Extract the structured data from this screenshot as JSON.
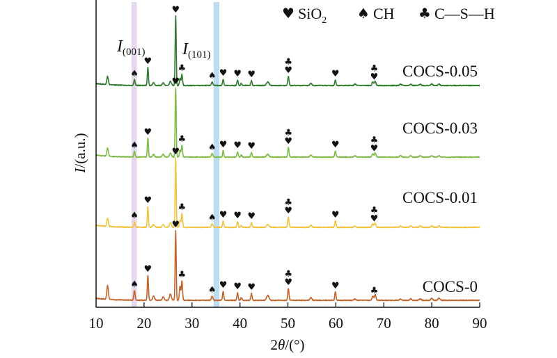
{
  "chart_data": {
    "type": "line",
    "title": "",
    "xlabel": "2θ/(°)",
    "xlabel_parts": {
      "pre": "2",
      "italic": "θ",
      "post": "/(°)"
    },
    "ylabel": "I/(a.u.)",
    "ylabel_parts": {
      "italic": "I",
      "post": "/(a.u.)"
    },
    "xlim": [
      10,
      90
    ],
    "xticks": [
      10,
      20,
      30,
      40,
      50,
      60,
      70,
      80,
      90
    ],
    "xtick_labels": [
      "10",
      "20",
      "30",
      "40",
      "50",
      "60",
      "70",
      "80",
      "90"
    ],
    "y_ticks_shown": false,
    "grid": false,
    "legend": {
      "placement": "top-right",
      "entries": [
        {
          "symbol": "♥",
          "label": "SiO",
          "sub": "2",
          "phase": "SiO2"
        },
        {
          "symbol": "♠",
          "label": "CH",
          "sub": "",
          "phase": "CH"
        },
        {
          "symbol": "♣",
          "label": "C—S—H",
          "sub": "",
          "phase": "C-S-H"
        }
      ]
    },
    "highlight_bands": [
      {
        "name": "I(001)",
        "label": "I",
        "sub": "(001)",
        "x_range": [
          17.4,
          18.5
        ],
        "color": "#e6d6ee"
      },
      {
        "name": "I(101)",
        "label": "I",
        "sub": "(101)",
        "x_range": [
          34.5,
          35.7
        ],
        "color": "#bcdcf2"
      }
    ],
    "peaks_2theta": [
      12.4,
      18.0,
      20.8,
      26.6,
      27.9,
      34.2,
      36.5,
      39.5,
      42.4,
      45.8,
      50.1,
      54.8,
      59.9,
      67.9,
      68.2
    ],
    "series": [
      {
        "name": "COCS-0.05",
        "color": "#2e7a2e",
        "offset_level": 3,
        "peaks": [
          {
            "x": 12.4,
            "h": 0.12,
            "w": 0.25
          },
          {
            "x": 18.0,
            "h": 0.08,
            "w": 0.2
          },
          {
            "x": 20.8,
            "h": 0.26,
            "w": 0.18
          },
          {
            "x": 22.0,
            "h": 0.04,
            "w": 0.3
          },
          {
            "x": 24.0,
            "h": 0.04,
            "w": 0.3
          },
          {
            "x": 25.5,
            "h": 0.06,
            "w": 0.3
          },
          {
            "x": 26.6,
            "h": 1.0,
            "w": 0.17
          },
          {
            "x": 27.5,
            "h": 0.1,
            "w": 0.2
          },
          {
            "x": 27.9,
            "h": 0.16,
            "w": 0.2
          },
          {
            "x": 34.2,
            "h": 0.05,
            "w": 0.25
          },
          {
            "x": 36.5,
            "h": 0.09,
            "w": 0.2
          },
          {
            "x": 39.5,
            "h": 0.08,
            "w": 0.2
          },
          {
            "x": 40.3,
            "h": 0.03,
            "w": 0.2
          },
          {
            "x": 42.4,
            "h": 0.07,
            "w": 0.2
          },
          {
            "x": 45.8,
            "h": 0.05,
            "w": 0.4
          },
          {
            "x": 50.1,
            "h": 0.13,
            "w": 0.2
          },
          {
            "x": 54.8,
            "h": 0.03,
            "w": 0.3
          },
          {
            "x": 59.9,
            "h": 0.08,
            "w": 0.2
          },
          {
            "x": 64.0,
            "h": 0.02,
            "w": 0.3
          },
          {
            "x": 67.7,
            "h": 0.05,
            "w": 0.25
          },
          {
            "x": 68.2,
            "h": 0.06,
            "w": 0.25
          },
          {
            "x": 73.5,
            "h": 0.02,
            "w": 0.3
          },
          {
            "x": 75.6,
            "h": 0.02,
            "w": 0.3
          },
          {
            "x": 77.6,
            "h": 0.02,
            "w": 0.3
          },
          {
            "x": 80.0,
            "h": 0.02,
            "w": 0.3
          },
          {
            "x": 81.5,
            "h": 0.02,
            "w": 0.3
          }
        ],
        "markers": [
          {
            "x": 18.0,
            "symbols": [
              "♠"
            ]
          },
          {
            "x": 20.8,
            "symbols": [
              "♥"
            ]
          },
          {
            "x": 26.6,
            "symbols": [
              "♥"
            ]
          },
          {
            "x": 27.9,
            "symbols": [
              "♣"
            ]
          },
          {
            "x": 34.2,
            "symbols": [
              "♠"
            ]
          },
          {
            "x": 36.5,
            "symbols": [
              "♥"
            ]
          },
          {
            "x": 39.5,
            "symbols": [
              "♥"
            ]
          },
          {
            "x": 42.4,
            "symbols": [
              "♥"
            ]
          },
          {
            "x": 50.1,
            "symbols": [
              "♣",
              "♥"
            ]
          },
          {
            "x": 59.9,
            "symbols": [
              "♥"
            ]
          },
          {
            "x": 68.0,
            "symbols": [
              "♣",
              "♥"
            ]
          }
        ]
      },
      {
        "name": "COCS-0.03",
        "color": "#7cbb44",
        "offset_level": 2,
        "peaks": [
          {
            "x": 12.4,
            "h": 0.12,
            "w": 0.25
          },
          {
            "x": 18.0,
            "h": 0.08,
            "w": 0.2
          },
          {
            "x": 20.8,
            "h": 0.27,
            "w": 0.18
          },
          {
            "x": 22.0,
            "h": 0.04,
            "w": 0.3
          },
          {
            "x": 24.0,
            "h": 0.04,
            "w": 0.3
          },
          {
            "x": 25.5,
            "h": 0.06,
            "w": 0.3
          },
          {
            "x": 26.6,
            "h": 1.0,
            "w": 0.17
          },
          {
            "x": 27.5,
            "h": 0.1,
            "w": 0.2
          },
          {
            "x": 27.9,
            "h": 0.17,
            "w": 0.2
          },
          {
            "x": 34.2,
            "h": 0.05,
            "w": 0.25
          },
          {
            "x": 36.5,
            "h": 0.09,
            "w": 0.2
          },
          {
            "x": 39.5,
            "h": 0.08,
            "w": 0.2
          },
          {
            "x": 40.3,
            "h": 0.03,
            "w": 0.2
          },
          {
            "x": 42.4,
            "h": 0.07,
            "w": 0.2
          },
          {
            "x": 45.8,
            "h": 0.04,
            "w": 0.4
          },
          {
            "x": 50.1,
            "h": 0.14,
            "w": 0.2
          },
          {
            "x": 54.8,
            "h": 0.03,
            "w": 0.3
          },
          {
            "x": 59.9,
            "h": 0.09,
            "w": 0.2
          },
          {
            "x": 64.0,
            "h": 0.02,
            "w": 0.3
          },
          {
            "x": 67.7,
            "h": 0.05,
            "w": 0.25
          },
          {
            "x": 68.2,
            "h": 0.06,
            "w": 0.25
          },
          {
            "x": 73.5,
            "h": 0.02,
            "w": 0.3
          },
          {
            "x": 75.6,
            "h": 0.02,
            "w": 0.3
          },
          {
            "x": 77.6,
            "h": 0.02,
            "w": 0.3
          },
          {
            "x": 80.0,
            "h": 0.02,
            "w": 0.3
          },
          {
            "x": 81.5,
            "h": 0.02,
            "w": 0.3
          }
        ],
        "markers": [
          {
            "x": 18.0,
            "symbols": [
              "♠"
            ]
          },
          {
            "x": 20.8,
            "symbols": [
              "♥"
            ]
          },
          {
            "x": 26.6,
            "symbols": [
              "♥"
            ]
          },
          {
            "x": 27.9,
            "symbols": [
              "♣"
            ]
          },
          {
            "x": 34.2,
            "symbols": [
              "♠"
            ]
          },
          {
            "x": 36.5,
            "symbols": [
              "♥"
            ]
          },
          {
            "x": 39.5,
            "symbols": [
              "♥"
            ]
          },
          {
            "x": 42.4,
            "symbols": [
              "♥"
            ]
          },
          {
            "x": 50.1,
            "symbols": [
              "♣",
              "♥"
            ]
          },
          {
            "x": 59.9,
            "symbols": [
              "♥"
            ]
          },
          {
            "x": 68.0,
            "symbols": [
              "♣",
              "♥"
            ]
          }
        ]
      },
      {
        "name": "COCS-0.01",
        "color": "#f2c341",
        "offset_level": 1,
        "peaks": [
          {
            "x": 12.4,
            "h": 0.12,
            "w": 0.25
          },
          {
            "x": 18.0,
            "h": 0.08,
            "w": 0.2
          },
          {
            "x": 20.8,
            "h": 0.3,
            "w": 0.18
          },
          {
            "x": 22.0,
            "h": 0.04,
            "w": 0.3
          },
          {
            "x": 24.0,
            "h": 0.04,
            "w": 0.3
          },
          {
            "x": 25.5,
            "h": 0.07,
            "w": 0.3
          },
          {
            "x": 26.6,
            "h": 1.0,
            "w": 0.17
          },
          {
            "x": 27.5,
            "h": 0.1,
            "w": 0.2
          },
          {
            "x": 27.9,
            "h": 0.2,
            "w": 0.2
          },
          {
            "x": 34.2,
            "h": 0.05,
            "w": 0.25
          },
          {
            "x": 36.5,
            "h": 0.09,
            "w": 0.2
          },
          {
            "x": 39.5,
            "h": 0.08,
            "w": 0.2
          },
          {
            "x": 40.3,
            "h": 0.03,
            "w": 0.2
          },
          {
            "x": 42.4,
            "h": 0.07,
            "w": 0.2
          },
          {
            "x": 45.8,
            "h": 0.04,
            "w": 0.4
          },
          {
            "x": 50.1,
            "h": 0.15,
            "w": 0.2
          },
          {
            "x": 54.8,
            "h": 0.03,
            "w": 0.3
          },
          {
            "x": 59.9,
            "h": 0.09,
            "w": 0.2
          },
          {
            "x": 64.0,
            "h": 0.02,
            "w": 0.3
          },
          {
            "x": 67.7,
            "h": 0.05,
            "w": 0.25
          },
          {
            "x": 68.2,
            "h": 0.06,
            "w": 0.25
          },
          {
            "x": 73.5,
            "h": 0.02,
            "w": 0.3
          },
          {
            "x": 75.6,
            "h": 0.02,
            "w": 0.3
          },
          {
            "x": 77.6,
            "h": 0.02,
            "w": 0.3
          },
          {
            "x": 80.0,
            "h": 0.02,
            "w": 0.3
          },
          {
            "x": 81.5,
            "h": 0.02,
            "w": 0.3
          }
        ],
        "markers": [
          {
            "x": 18.0,
            "symbols": [
              "♠"
            ]
          },
          {
            "x": 20.8,
            "symbols": [
              "♥"
            ]
          },
          {
            "x": 26.6,
            "symbols": [
              "♥"
            ]
          },
          {
            "x": 27.9,
            "symbols": [
              "♣"
            ]
          },
          {
            "x": 34.2,
            "symbols": [
              "♠"
            ]
          },
          {
            "x": 36.5,
            "symbols": [
              "♥"
            ]
          },
          {
            "x": 39.5,
            "symbols": [
              "♥"
            ]
          },
          {
            "x": 42.4,
            "symbols": [
              "♥"
            ]
          },
          {
            "x": 50.1,
            "symbols": [
              "♣",
              "♥"
            ]
          },
          {
            "x": 59.9,
            "symbols": [
              "♥"
            ]
          },
          {
            "x": 68.0,
            "symbols": [
              "♣",
              "♥"
            ]
          }
        ]
      },
      {
        "name": "COCS-0",
        "color": "#c2642a",
        "offset_level": 0,
        "peaks": [
          {
            "x": 12.4,
            "h": 0.2,
            "w": 0.25
          },
          {
            "x": 18.0,
            "h": 0.14,
            "w": 0.2
          },
          {
            "x": 20.8,
            "h": 0.36,
            "w": 0.18
          },
          {
            "x": 22.0,
            "h": 0.06,
            "w": 0.3
          },
          {
            "x": 24.0,
            "h": 0.05,
            "w": 0.3
          },
          {
            "x": 25.5,
            "h": 0.09,
            "w": 0.3
          },
          {
            "x": 26.6,
            "h": 1.0,
            "w": 0.17
          },
          {
            "x": 27.5,
            "h": 0.2,
            "w": 0.2
          },
          {
            "x": 27.9,
            "h": 0.28,
            "w": 0.2
          },
          {
            "x": 34.2,
            "h": 0.06,
            "w": 0.25
          },
          {
            "x": 36.5,
            "h": 0.13,
            "w": 0.2
          },
          {
            "x": 39.5,
            "h": 0.11,
            "w": 0.2
          },
          {
            "x": 40.3,
            "h": 0.04,
            "w": 0.2
          },
          {
            "x": 42.4,
            "h": 0.1,
            "w": 0.2
          },
          {
            "x": 45.8,
            "h": 0.07,
            "w": 0.4
          },
          {
            "x": 50.1,
            "h": 0.17,
            "w": 0.2
          },
          {
            "x": 54.8,
            "h": 0.04,
            "w": 0.3
          },
          {
            "x": 59.9,
            "h": 0.12,
            "w": 0.2
          },
          {
            "x": 64.0,
            "h": 0.02,
            "w": 0.3
          },
          {
            "x": 67.7,
            "h": 0.06,
            "w": 0.25
          },
          {
            "x": 68.2,
            "h": 0.08,
            "w": 0.25
          },
          {
            "x": 73.5,
            "h": 0.02,
            "w": 0.3
          },
          {
            "x": 75.6,
            "h": 0.02,
            "w": 0.3
          },
          {
            "x": 77.6,
            "h": 0.02,
            "w": 0.3
          },
          {
            "x": 80.0,
            "h": 0.03,
            "w": 0.3
          },
          {
            "x": 81.5,
            "h": 0.03,
            "w": 0.3
          }
        ],
        "markers": [
          {
            "x": 18.0,
            "symbols": [
              "♠"
            ]
          },
          {
            "x": 20.8,
            "symbols": [
              "♥"
            ]
          },
          {
            "x": 26.6,
            "symbols": [
              "♥"
            ]
          },
          {
            "x": 27.9,
            "symbols": [
              "♣"
            ]
          },
          {
            "x": 34.2,
            "symbols": [
              "♠"
            ]
          },
          {
            "x": 36.5,
            "symbols": [
              "♥"
            ]
          },
          {
            "x": 39.5,
            "symbols": [
              "♥"
            ]
          },
          {
            "x": 42.4,
            "symbols": [
              "♥"
            ]
          },
          {
            "x": 50.1,
            "symbols": [
              "♣",
              "♥"
            ]
          },
          {
            "x": 59.9,
            "symbols": [
              "♥"
            ]
          },
          {
            "x": 68.0,
            "symbols": [
              "♣"
            ]
          }
        ]
      }
    ]
  }
}
